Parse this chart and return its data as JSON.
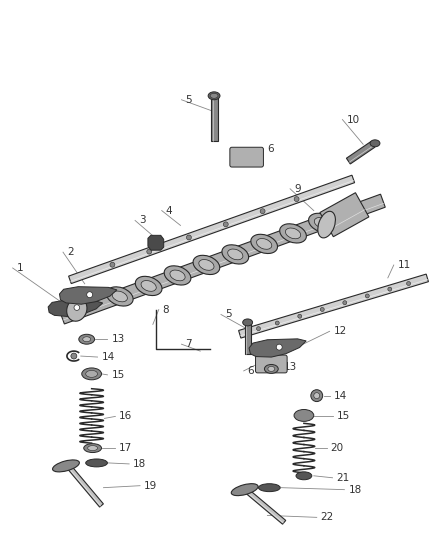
{
  "bg_color": "#ffffff",
  "line_color": "#2a2a2a",
  "label_color": "#333333",
  "fig_width": 4.38,
  "fig_height": 5.33,
  "dpi": 100
}
